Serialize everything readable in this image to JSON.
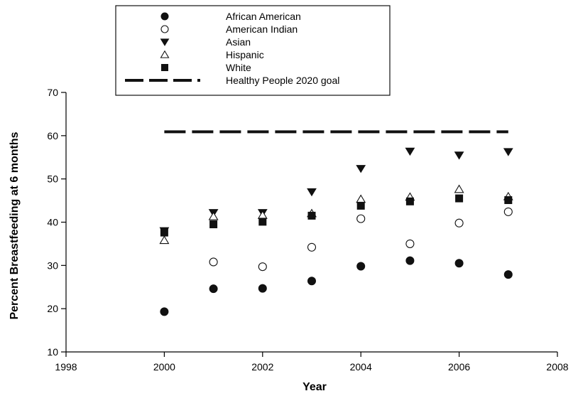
{
  "chart_data": {
    "type": "scatter",
    "xlabel": "Year",
    "ylabel": "Percent Breastfeeding at 6 months",
    "xlim": [
      1998,
      2008
    ],
    "ylim": [
      10,
      70
    ],
    "xticks": [
      1998,
      2000,
      2002,
      2004,
      2006,
      2008
    ],
    "yticks": [
      10,
      20,
      30,
      40,
      50,
      60,
      70
    ],
    "legend_position": "top-center",
    "grid": false,
    "series": [
      {
        "name": "African American",
        "marker": "filled-circle",
        "points": [
          [
            2000,
            19.3
          ],
          [
            2001,
            24.6
          ],
          [
            2002,
            24.7
          ],
          [
            2003,
            26.4
          ],
          [
            2004,
            29.8
          ],
          [
            2005,
            31.1
          ],
          [
            2006,
            30.5
          ],
          [
            2007,
            27.9
          ]
        ]
      },
      {
        "name": "American Indian",
        "marker": "open-circle",
        "points": [
          [
            2001,
            30.8
          ],
          [
            2002,
            29.7
          ],
          [
            2003,
            34.2
          ],
          [
            2004,
            40.8
          ],
          [
            2005,
            35.0
          ],
          [
            2006,
            39.8
          ],
          [
            2007,
            42.4
          ]
        ]
      },
      {
        "name": "Asian",
        "marker": "filled-triangle-down",
        "points": [
          [
            2000,
            38.0
          ],
          [
            2001,
            42.2
          ],
          [
            2002,
            42.2
          ],
          [
            2003,
            47.0
          ],
          [
            2004,
            52.4
          ],
          [
            2005,
            56.4
          ],
          [
            2006,
            55.5
          ],
          [
            2007,
            56.3
          ]
        ]
      },
      {
        "name": "Hispanic",
        "marker": "open-triangle-up",
        "points": [
          [
            2000,
            35.8
          ],
          [
            2001,
            41.3
          ],
          [
            2002,
            41.6
          ],
          [
            2003,
            42.0
          ],
          [
            2004,
            45.3
          ],
          [
            2005,
            45.8
          ],
          [
            2006,
            47.6
          ],
          [
            2007,
            45.9
          ]
        ]
      },
      {
        "name": "White",
        "marker": "filled-square",
        "points": [
          [
            2000,
            37.6
          ],
          [
            2001,
            39.5
          ],
          [
            2002,
            40.1
          ],
          [
            2003,
            41.5
          ],
          [
            2004,
            43.8
          ],
          [
            2005,
            44.8
          ],
          [
            2006,
            45.5
          ],
          [
            2007,
            45.1
          ]
        ]
      }
    ],
    "reference_lines": [
      {
        "name": "Healthy People 2020 goal",
        "style": "dashed",
        "y": 60.9,
        "x_range": [
          2000,
          2007
        ]
      }
    ]
  }
}
